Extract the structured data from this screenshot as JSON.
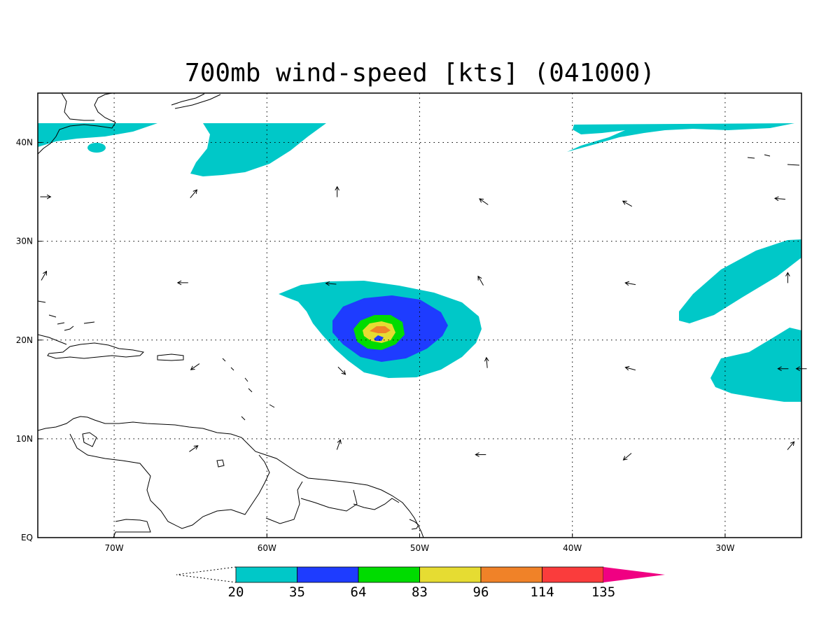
{
  "title": "700mb wind-speed [kts] (041000)",
  "map": {
    "lon_range": [
      -75,
      -25
    ],
    "lat_range": [
      0,
      45
    ],
    "lon_ticks": [
      {
        "value": -70,
        "label": "70W"
      },
      {
        "value": -60,
        "label": "60W"
      },
      {
        "value": -50,
        "label": "50W"
      },
      {
        "value": -40,
        "label": "40W"
      },
      {
        "value": -30,
        "label": "30W"
      }
    ],
    "lat_ticks": [
      {
        "value": 0,
        "label": "EQ"
      },
      {
        "value": 10,
        "label": "10N"
      },
      {
        "value": 20,
        "label": "20N"
      },
      {
        "value": 30,
        "label": "30N"
      },
      {
        "value": 40,
        "label": "40N"
      }
    ],
    "grid": "dotted"
  },
  "colorbar": {
    "levels": [
      {
        "label": "20",
        "color": "#00c8c8"
      },
      {
        "label": "35",
        "color": "#1e3cff"
      },
      {
        "label": "64",
        "color": "#00dc00"
      },
      {
        "label": "83",
        "color": "#e6dc32"
      },
      {
        "label": "96",
        "color": "#f08228"
      },
      {
        "label": "114",
        "color": "#fa3c3c"
      },
      {
        "label": "135",
        "color": "#f00082"
      }
    ],
    "top_color": "#f00082"
  },
  "wind_vectors": [
    {
      "lon": -74.5,
      "lat": 34.5,
      "dir": 90
    },
    {
      "lon": -64.8,
      "lat": 34.8,
      "dir": 40
    },
    {
      "lon": -55.4,
      "lat": 35.0,
      "dir": 0
    },
    {
      "lon": -45.8,
      "lat": 34.0,
      "dir": 305
    },
    {
      "lon": -36.4,
      "lat": 33.8,
      "dir": 300
    },
    {
      "lon": -26.4,
      "lat": 34.3,
      "dir": 275
    },
    {
      "lon": -74.6,
      "lat": 26.5,
      "dir": 30
    },
    {
      "lon": -65.5,
      "lat": 25.8,
      "dir": 270
    },
    {
      "lon": -55.8,
      "lat": 25.7,
      "dir": 275
    },
    {
      "lon": -46.0,
      "lat": 26.0,
      "dir": 330
    },
    {
      "lon": -36.2,
      "lat": 25.7,
      "dir": 280
    },
    {
      "lon": -25.9,
      "lat": 26.3,
      "dir": 0
    },
    {
      "lon": -64.7,
      "lat": 17.3,
      "dir": 235
    },
    {
      "lon": -55.1,
      "lat": 16.9,
      "dir": 135
    },
    {
      "lon": -45.6,
      "lat": 17.7,
      "dir": 355
    },
    {
      "lon": -36.2,
      "lat": 17.1,
      "dir": 285
    },
    {
      "lon": -26.2,
      "lat": 17.1,
      "dir": 270
    },
    {
      "lon": -25.0,
      "lat": 17.1,
      "dir": 270
    },
    {
      "lon": -64.8,
      "lat": 9.0,
      "dir": 55
    },
    {
      "lon": -55.3,
      "lat": 9.4,
      "dir": 20
    },
    {
      "lon": -46.0,
      "lat": 8.4,
      "dir": 270
    },
    {
      "lon": -36.4,
      "lat": 8.2,
      "dir": 230
    },
    {
      "lon": -25.7,
      "lat": 9.3,
      "dir": 40
    }
  ]
}
